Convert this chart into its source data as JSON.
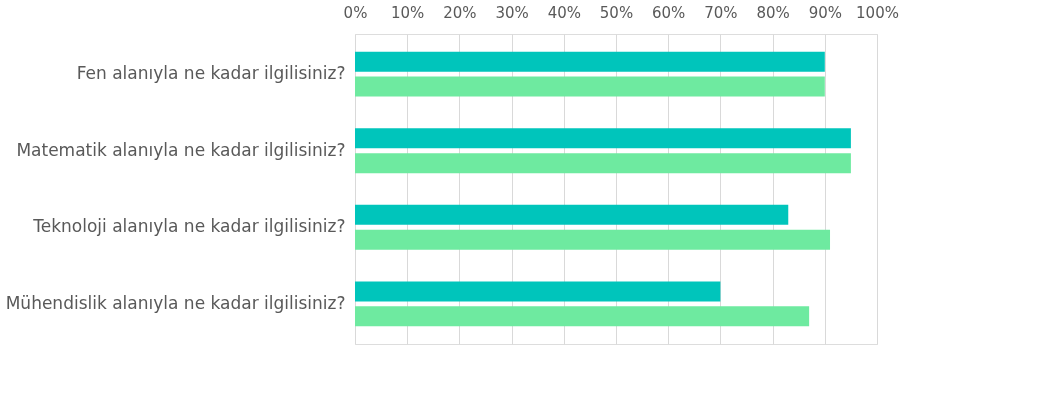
{
  "chart_data": {
    "type": "bar",
    "orientation": "horizontal",
    "categories": [
      "Fen alanıyla ne kadar ilgilisiniz?",
      "Matematik alanıyla ne kadar ilgilisiniz?",
      "Teknoloji alanıyla ne kadar ilgilisiniz?",
      "Mühendislik alanıyla ne kadar ilgilisiniz?"
    ],
    "series": [
      {
        "color": "#00c5bb",
        "values": [
          90,
          95,
          83,
          70
        ]
      },
      {
        "color": "#6eeaa0",
        "values": [
          90,
          95,
          91,
          87
        ]
      }
    ],
    "xlim": [
      0,
      100
    ],
    "xticks": [
      {
        "value": 0,
        "label": "0%"
      },
      {
        "value": 10,
        "label": "10%"
      },
      {
        "value": 20,
        "label": "20%"
      },
      {
        "value": 30,
        "label": "30%"
      },
      {
        "value": 40,
        "label": "40%"
      },
      {
        "value": 50,
        "label": "50%"
      },
      {
        "value": 60,
        "label": "60%"
      },
      {
        "value": 70,
        "label": "70%"
      },
      {
        "value": 80,
        "label": "80%"
      },
      {
        "value": 90,
        "label": "90%"
      },
      {
        "value": 100,
        "label": "100%"
      }
    ],
    "grid": "x",
    "legend": false
  }
}
